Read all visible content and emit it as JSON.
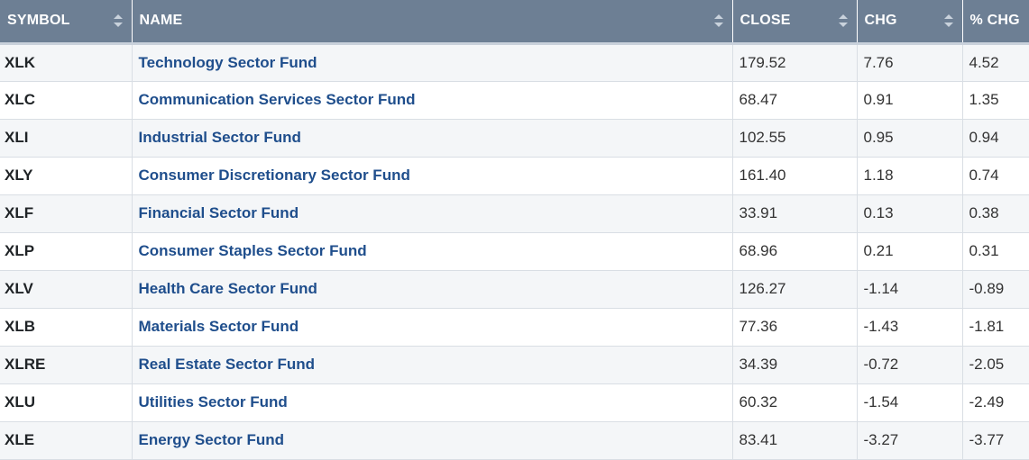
{
  "table": {
    "columns": [
      {
        "key": "symbol",
        "label": "SYMBOL"
      },
      {
        "key": "name",
        "label": "NAME"
      },
      {
        "key": "close",
        "label": "CLOSE"
      },
      {
        "key": "chg",
        "label": "CHG"
      },
      {
        "key": "pct_chg",
        "label": "% CHG"
      }
    ],
    "rows": [
      {
        "symbol": "XLK",
        "name": "Technology Sector Fund",
        "close": "179.52",
        "chg": "7.76",
        "pct_chg": "4.52"
      },
      {
        "symbol": "XLC",
        "name": "Communication Services Sector Fund",
        "close": "68.47",
        "chg": "0.91",
        "pct_chg": "1.35"
      },
      {
        "symbol": "XLI",
        "name": "Industrial Sector Fund",
        "close": "102.55",
        "chg": "0.95",
        "pct_chg": "0.94"
      },
      {
        "symbol": "XLY",
        "name": "Consumer Discretionary Sector Fund",
        "close": "161.40",
        "chg": "1.18",
        "pct_chg": "0.74"
      },
      {
        "symbol": "XLF",
        "name": "Financial Sector Fund",
        "close": "33.91",
        "chg": "0.13",
        "pct_chg": "0.38"
      },
      {
        "symbol": "XLP",
        "name": "Consumer Staples Sector Fund",
        "close": "68.96",
        "chg": "0.21",
        "pct_chg": "0.31"
      },
      {
        "symbol": "XLV",
        "name": "Health Care Sector Fund",
        "close": "126.27",
        "chg": "-1.14",
        "pct_chg": "-0.89"
      },
      {
        "symbol": "XLB",
        "name": "Materials Sector Fund",
        "close": "77.36",
        "chg": "-1.43",
        "pct_chg": "-1.81"
      },
      {
        "symbol": "XLRE",
        "name": "Real Estate Sector Fund",
        "close": "34.39",
        "chg": "-0.72",
        "pct_chg": "-2.05"
      },
      {
        "symbol": "XLU",
        "name": "Utilities Sector Fund",
        "close": "60.32",
        "chg": "-1.54",
        "pct_chg": "-2.49"
      },
      {
        "symbol": "XLE",
        "name": "Energy Sector Fund",
        "close": "83.41",
        "chg": "-3.27",
        "pct_chg": "-3.77"
      }
    ]
  },
  "colors": {
    "header_bg": "#6d7f94",
    "header_text": "#ffffff",
    "link": "#1f4e8c",
    "row_alt": "#f4f6f8",
    "border": "#d9dee4"
  },
  "icons": {
    "sort": "sort-arrows-icon"
  }
}
